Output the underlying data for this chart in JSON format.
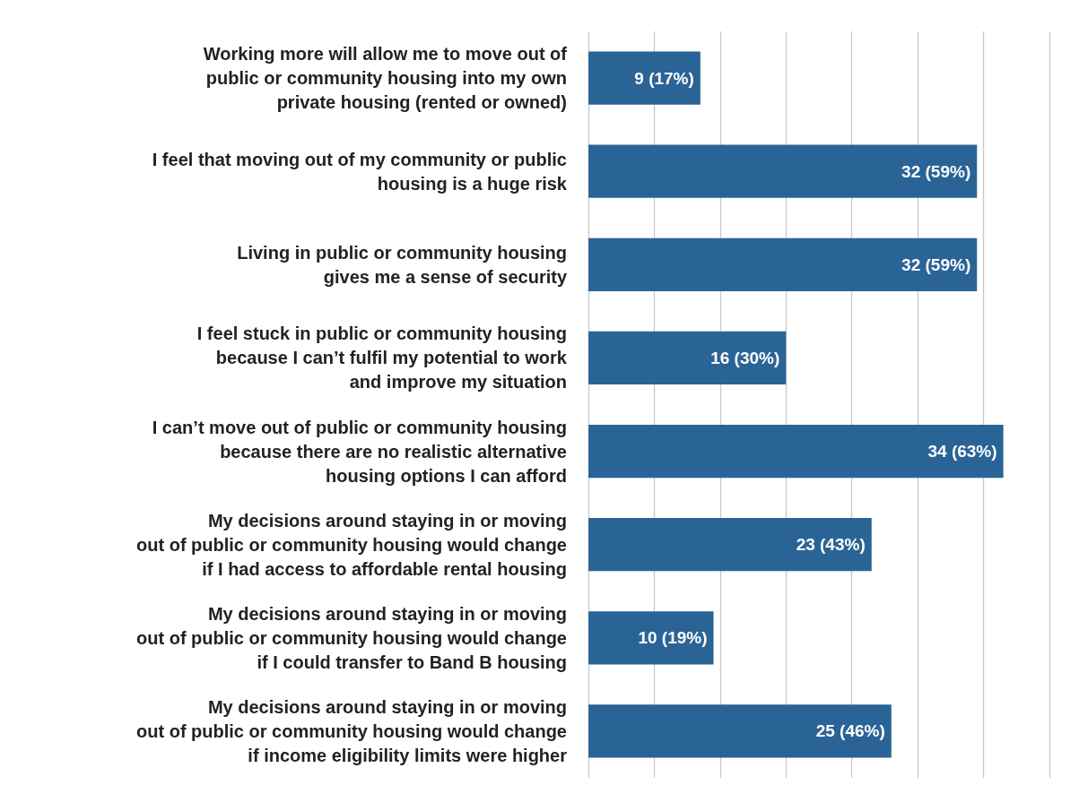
{
  "chart_data": {
    "type": "bar",
    "orientation": "horizontal",
    "categories": [
      "Working more will allow me to move out of\npublic or community housing into my own\nprivate housing (rented or owned)",
      "I feel that moving out of my community or public\nhousing is a huge risk",
      "Living in public or community housing\ngives me a sense of security",
      "I feel stuck in public or community housing\nbecause I can’t fulfil my potential to work\nand improve my situation",
      "I can’t move out of public or community housing\nbecause there are no realistic alternative\nhousing options I can afford",
      "My decisions around staying in or moving\nout of public or community housing would change\nif I had access to affordable rental housing",
      "My decisions around staying in or moving\nout of public or community housing would change\nif I could transfer to Band B housing",
      "My decisions around staying in or moving\nout of public or community housing would change\nif income eligibility limits were higher"
    ],
    "values": [
      17,
      59,
      59,
      30,
      63,
      43,
      19,
      46
    ],
    "value_labels": [
      "9 (17%)",
      "32 (59%)",
      "32 (59%)",
      "16 (30%)",
      "34 (63%)",
      "23 (43%)",
      "10 (19%)",
      "25 (46%)"
    ],
    "color": "#2a6496",
    "xlim": [
      0,
      70
    ],
    "xticks": [
      {
        "value": 0,
        "label": null
      },
      {
        "value": 10,
        "label": null
      },
      {
        "value": 20,
        "label": null
      },
      {
        "value": 30,
        "label": null
      },
      {
        "value": 40,
        "label": null
      },
      {
        "value": 50,
        "label": null
      },
      {
        "value": 60,
        "label": null
      },
      {
        "value": 70,
        "label": null
      }
    ],
    "grid": "x"
  }
}
